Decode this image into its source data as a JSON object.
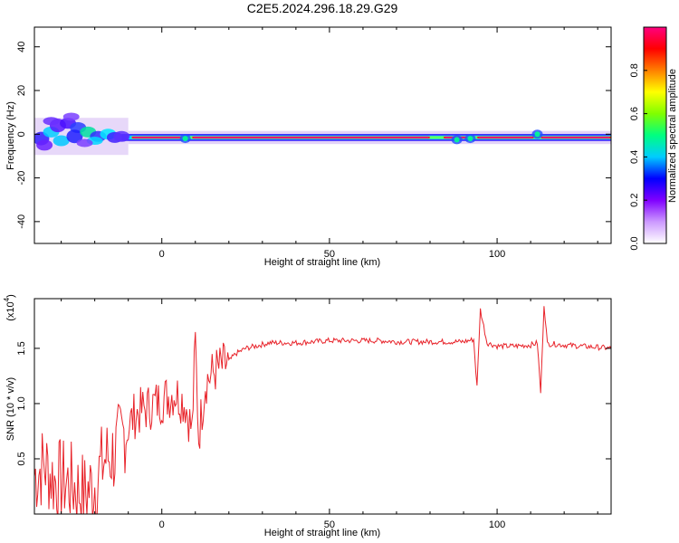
{
  "title": "C2E5.2024.296.18.29.G29",
  "colors": {
    "snr_line": "#e8232a",
    "frame": "#000000"
  },
  "chart_data": [
    {
      "type": "heatmap",
      "xlabel": "Height of straight line (km)",
      "ylabel": "Frequency (Hz)",
      "xlim": [
        -38,
        134
      ],
      "ylim": [
        -50,
        49
      ],
      "xticks": [
        0,
        50,
        100
      ],
      "yticks": [
        -40,
        -20,
        0,
        20,
        40
      ],
      "colorbar": {
        "label": "Normalized spectral amplitude",
        "range": [
          0,
          1
        ],
        "ticks": [
          "0.0",
          "0.2",
          "0.4",
          "0.6",
          "0.8"
        ],
        "colormap": [
          "#ffffff",
          "#cc99ff",
          "#8000ff",
          "#0000ff",
          "#00ccff",
          "#00ff80",
          "#80ff00",
          "#ffff00",
          "#ff8000",
          "#ff0000",
          "#ff0080"
        ]
      },
      "ridge": {
        "center_freq_hz": -1.5,
        "note": "dominant near-zero frequency band along the full height range"
      }
    },
    {
      "type": "line",
      "xlabel": "Height of straight line (km)",
      "ylabel": "SNR (10 * v/v)",
      "y_multiplier": "(x10",
      "y_multiplier_exp": "4",
      "xlim": [
        -38,
        134
      ],
      "ylim": [
        0,
        1.95
      ],
      "xticks": [
        0,
        50,
        100
      ],
      "yticks": [
        0.5,
        1.0,
        1.5
      ],
      "series": [
        {
          "x": [
            -38,
            -35,
            -32,
            -29,
            -26,
            -23,
            -20,
            -17,
            -14,
            -11,
            -8,
            -5,
            -2,
            1,
            4,
            7,
            9,
            10,
            11,
            13,
            16,
            19,
            22,
            25,
            28,
            32,
            36,
            40,
            45,
            50,
            55,
            60,
            65,
            70,
            75,
            80,
            85,
            90,
            93,
            94,
            95,
            97,
            100,
            105,
            110,
            112,
            113,
            114,
            115,
            117,
            120,
            125,
            130,
            134
          ],
          "y": [
            0.35,
            0.45,
            0.3,
            0.3,
            0.25,
            0.18,
            0.28,
            0.5,
            0.55,
            0.75,
            0.9,
            0.95,
            1.0,
            1.05,
            1.1,
            1.0,
            0.75,
            1.55,
            0.7,
            1.2,
            1.3,
            1.35,
            1.45,
            1.5,
            1.52,
            1.55,
            1.55,
            1.55,
            1.56,
            1.57,
            1.57,
            1.57,
            1.57,
            1.56,
            1.56,
            1.56,
            1.56,
            1.56,
            1.58,
            1.15,
            1.85,
            1.55,
            1.52,
            1.52,
            1.53,
            1.55,
            1.1,
            1.9,
            1.54,
            1.54,
            1.53,
            1.52,
            1.51,
            1.5
          ]
        }
      ]
    }
  ]
}
